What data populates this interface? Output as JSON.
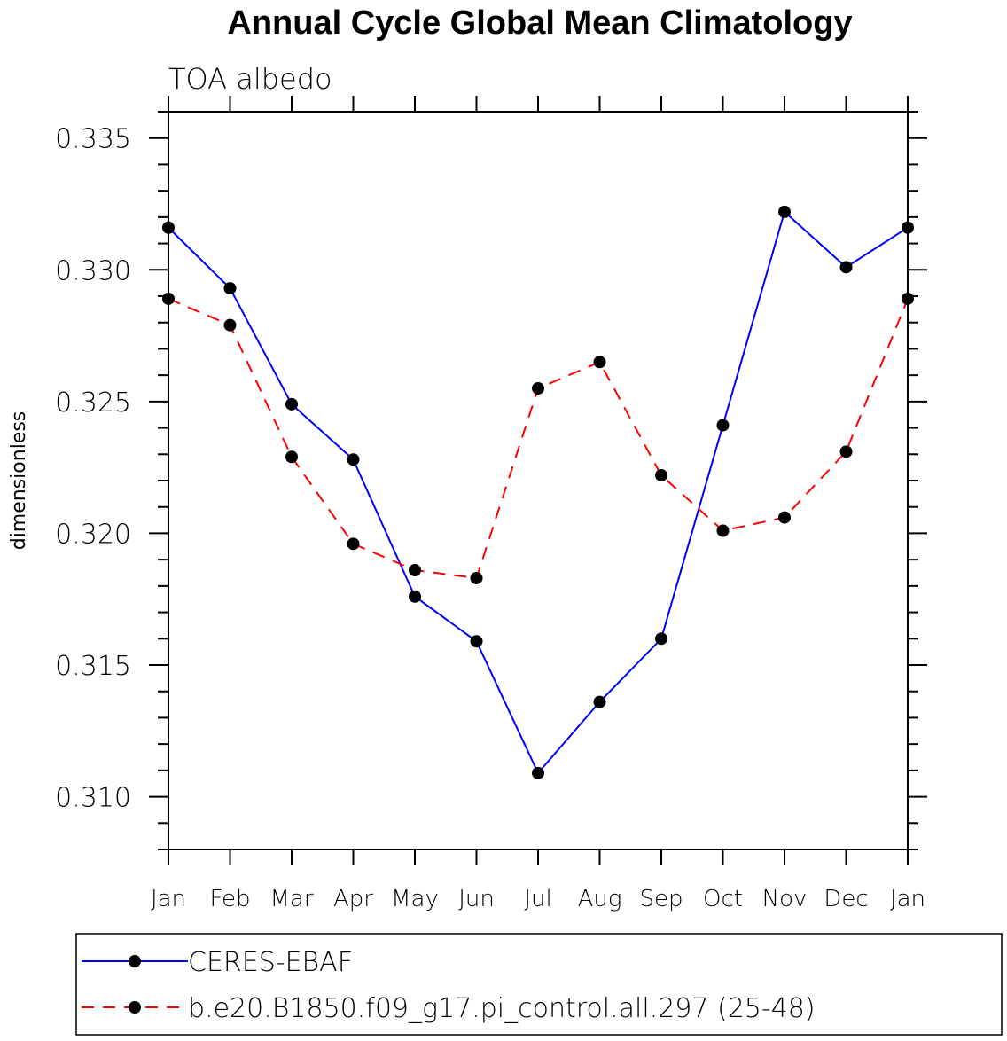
{
  "chart_data": {
    "type": "line",
    "title": "Annual Cycle Global Mean Climatology",
    "subtitle": "TOA albedo",
    "xlabel": "",
    "ylabel": "dimensionless",
    "categories": [
      "Jan",
      "Feb",
      "Mar",
      "Apr",
      "May",
      "Jun",
      "Jul",
      "Aug",
      "Sep",
      "Oct",
      "Nov",
      "Dec",
      "Jan"
    ],
    "yticks": [
      "0.310",
      "0.315",
      "0.320",
      "0.325",
      "0.330",
      "0.335"
    ],
    "ytick_values": [
      0.31,
      0.315,
      0.32,
      0.325,
      0.33,
      0.335
    ],
    "ylim": [
      0.308,
      0.336
    ],
    "grid": false,
    "legend_position": "bottom",
    "series": [
      {
        "name": "CERES-EBAF",
        "color": "#0000ff",
        "dash": "solid",
        "marker": "filled-circle",
        "values": [
          0.3316,
          0.3293,
          0.3249,
          0.3228,
          0.3176,
          0.3159,
          0.3109,
          0.3136,
          0.316,
          0.3241,
          0.3322,
          0.3301,
          0.3316
        ]
      },
      {
        "name": "b.e20.B1850.f09_g17.pi_control.all.297 (25-48)",
        "color": "#ff0000",
        "dash": "dashed",
        "marker": "filled-circle",
        "values": [
          0.3289,
          0.3279,
          0.3229,
          0.3196,
          0.3186,
          0.3183,
          0.3255,
          0.3265,
          0.3222,
          0.3201,
          0.3206,
          0.3231,
          0.3289
        ]
      }
    ]
  }
}
